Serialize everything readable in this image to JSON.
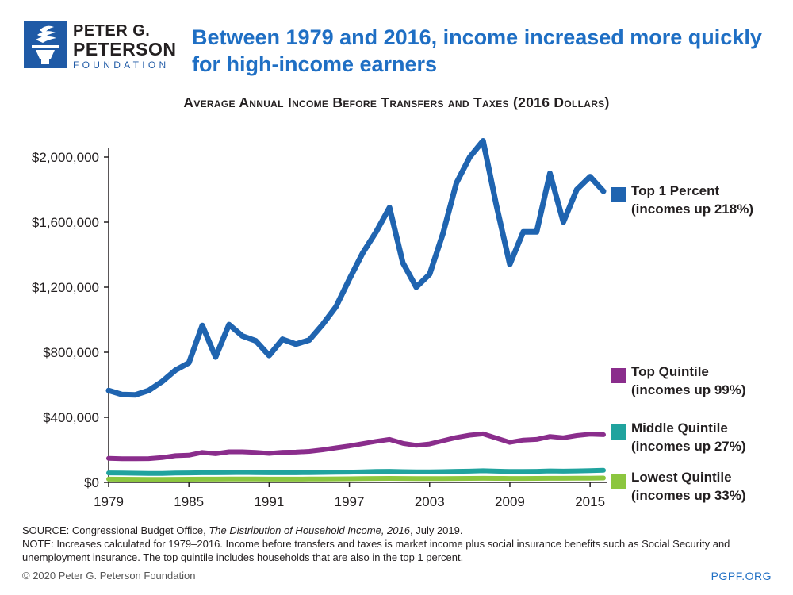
{
  "logo": {
    "line1": "PETER G.",
    "line2": "PETERSON",
    "line3": "FOUNDATION"
  },
  "title": "Between 1979 and 2016, income increased more quickly for high-income earners",
  "subtitle": "Average Annual Income Before Transfers and Taxes (2016 Dollars)",
  "chart_data": {
    "type": "line",
    "x": [
      1979,
      1980,
      1981,
      1982,
      1983,
      1984,
      1985,
      1986,
      1987,
      1988,
      1989,
      1990,
      1991,
      1992,
      1993,
      1994,
      1995,
      1996,
      1997,
      1998,
      1999,
      2000,
      2001,
      2002,
      2003,
      2004,
      2005,
      2006,
      2007,
      2008,
      2009,
      2010,
      2011,
      2012,
      2013,
      2014,
      2015,
      2016
    ],
    "x_ticks": [
      "1979",
      "1985",
      "1991",
      "1997",
      "2003",
      "2009",
      "2015"
    ],
    "x_tick_values": [
      1979,
      1985,
      1991,
      1997,
      2003,
      2009,
      2015
    ],
    "y_ticks": [
      "$0",
      "$400,000",
      "$800,000",
      "$1,200,000",
      "$1,600,000",
      "$2,000,000"
    ],
    "y_tick_values": [
      0,
      400000,
      800000,
      1200000,
      1600000,
      2000000
    ],
    "xlim": [
      1979,
      2016
    ],
    "ylim": [
      0,
      2000000
    ],
    "grid": false,
    "series": [
      {
        "name": "Top 1 Percent",
        "note": "(incomes up 218%)",
        "color": "#1f64b0",
        "values": [
          565000,
          540000,
          538000,
          565000,
          620000,
          690000,
          735000,
          965000,
          770000,
          970000,
          900000,
          870000,
          780000,
          880000,
          850000,
          875000,
          970000,
          1080000,
          1250000,
          1410000,
          1540000,
          1690000,
          1350000,
          1200000,
          1280000,
          1530000,
          1840000,
          2000000,
          2100000,
          1700000,
          1340000,
          1540000,
          1540000,
          1900000,
          1600000,
          1800000,
          1880000,
          1790000
        ]
      },
      {
        "name": "Top Quintile",
        "note": "(incomes up 99%)",
        "color": "#8a2d8c",
        "values": [
          148000,
          145000,
          145000,
          146000,
          152000,
          164000,
          167000,
          184000,
          176000,
          188000,
          188000,
          184000,
          178000,
          185000,
          186000,
          190000,
          200000,
          212000,
          224000,
          238000,
          252000,
          264000,
          240000,
          228000,
          236000,
          256000,
          276000,
          290000,
          298000,
          272000,
          246000,
          260000,
          264000,
          282000,
          274000,
          288000,
          296000,
          293000
        ]
      },
      {
        "name": "Middle Quintile",
        "note": "(incomes up 27%)",
        "color": "#20a39e",
        "values": [
          58000,
          57000,
          56000,
          55000,
          55000,
          57000,
          58000,
          59000,
          59000,
          60000,
          61000,
          60000,
          59000,
          59000,
          59000,
          60000,
          61000,
          62000,
          63000,
          65000,
          67000,
          68000,
          66000,
          65000,
          65000,
          66000,
          68000,
          69000,
          71000,
          69000,
          67000,
          67000,
          68000,
          70000,
          69000,
          70000,
          72000,
          74000
        ]
      },
      {
        "name": "Lowest Quintile",
        "note": "(incomes up 33%)",
        "color": "#8cc63f",
        "values": [
          20000,
          19500,
          19000,
          18500,
          18500,
          19000,
          19500,
          20000,
          20000,
          20500,
          21000,
          20500,
          20000,
          20000,
          20000,
          20500,
          21000,
          21500,
          22000,
          23000,
          24000,
          24500,
          24000,
          23500,
          23500,
          23500,
          24000,
          24500,
          25000,
          24500,
          24000,
          24000,
          24500,
          25000,
          25000,
          25500,
          26000,
          26600
        ]
      }
    ]
  },
  "source": {
    "prefix": "SOURCE: Congressional Budget Office, ",
    "italic": "The Distribution of Household Income, 2016",
    "suffix": ", July 2019."
  },
  "note": "NOTE: Increases calculated for 1979–2016. Income before transfers and taxes is market income plus social insurance benefits such as Social Security and unemployment insurance. The top quintile includes households that are also in the top 1 percent.",
  "footer": {
    "copyright": "© 2020 Peter G. Peterson Foundation",
    "site": "PGPF.ORG"
  }
}
